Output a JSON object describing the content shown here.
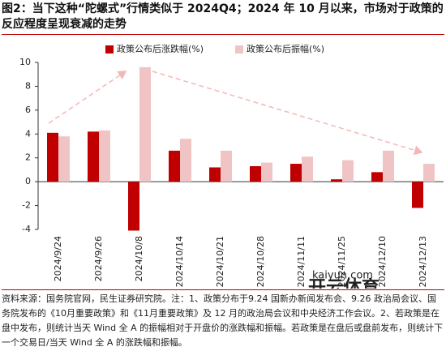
{
  "chart_data": {
    "type": "bar",
    "title": "图2：当下这种“陀螺式”行情类似于 2024Q4；2024 年 10 月以来，市场对于政策的反应程度呈现衰减的走势",
    "categories": [
      "2024/9/24",
      "2024/9/26",
      "2024/10/8",
      "2024/10/14",
      "2024/10/21",
      "2024/10/28",
      "2024/11/11",
      "2024/11/25",
      "2024/12/10",
      "2024/12/13"
    ],
    "series": [
      {
        "name": "政策公布后涨跌幅(%)",
        "color": "#c00000",
        "values": [
          4.1,
          4.2,
          -4.1,
          2.6,
          1.2,
          1.3,
          1.5,
          0.2,
          0.8,
          -2.2
        ]
      },
      {
        "name": "政策公布后振幅(%)",
        "color": "#f0c4c4",
        "values": [
          3.8,
          4.3,
          9.6,
          3.6,
          2.6,
          1.6,
          2.1,
          1.8,
          2.6,
          1.5
        ]
      }
    ],
    "ylim": [
      -4,
      10
    ],
    "yticks": [
      -4,
      -2,
      0,
      2,
      4,
      6,
      8,
      10
    ],
    "grid": false,
    "legend": "top",
    "note": "资料来源：国务院官网，民生证券研究院。注：1、政策分布于9.24 国新办新闻发布会、9.26 政治局会议、国务院发布的《10月重要政策》和《11月重要政策》及 12 月的政治局会议和中央经济工作会议。2、若政策是在盘中发布，则统计当天 Wind 全 A 的振幅相对于开盘价的涨跌幅和振幅。若政策是在盘后或盘前发布，则统计下一个交易日/当天 Wind 全 A 的涨跌幅和振幅。",
    "watermark": "开云体育",
    "watermark_url": "kaiyun.com"
  }
}
